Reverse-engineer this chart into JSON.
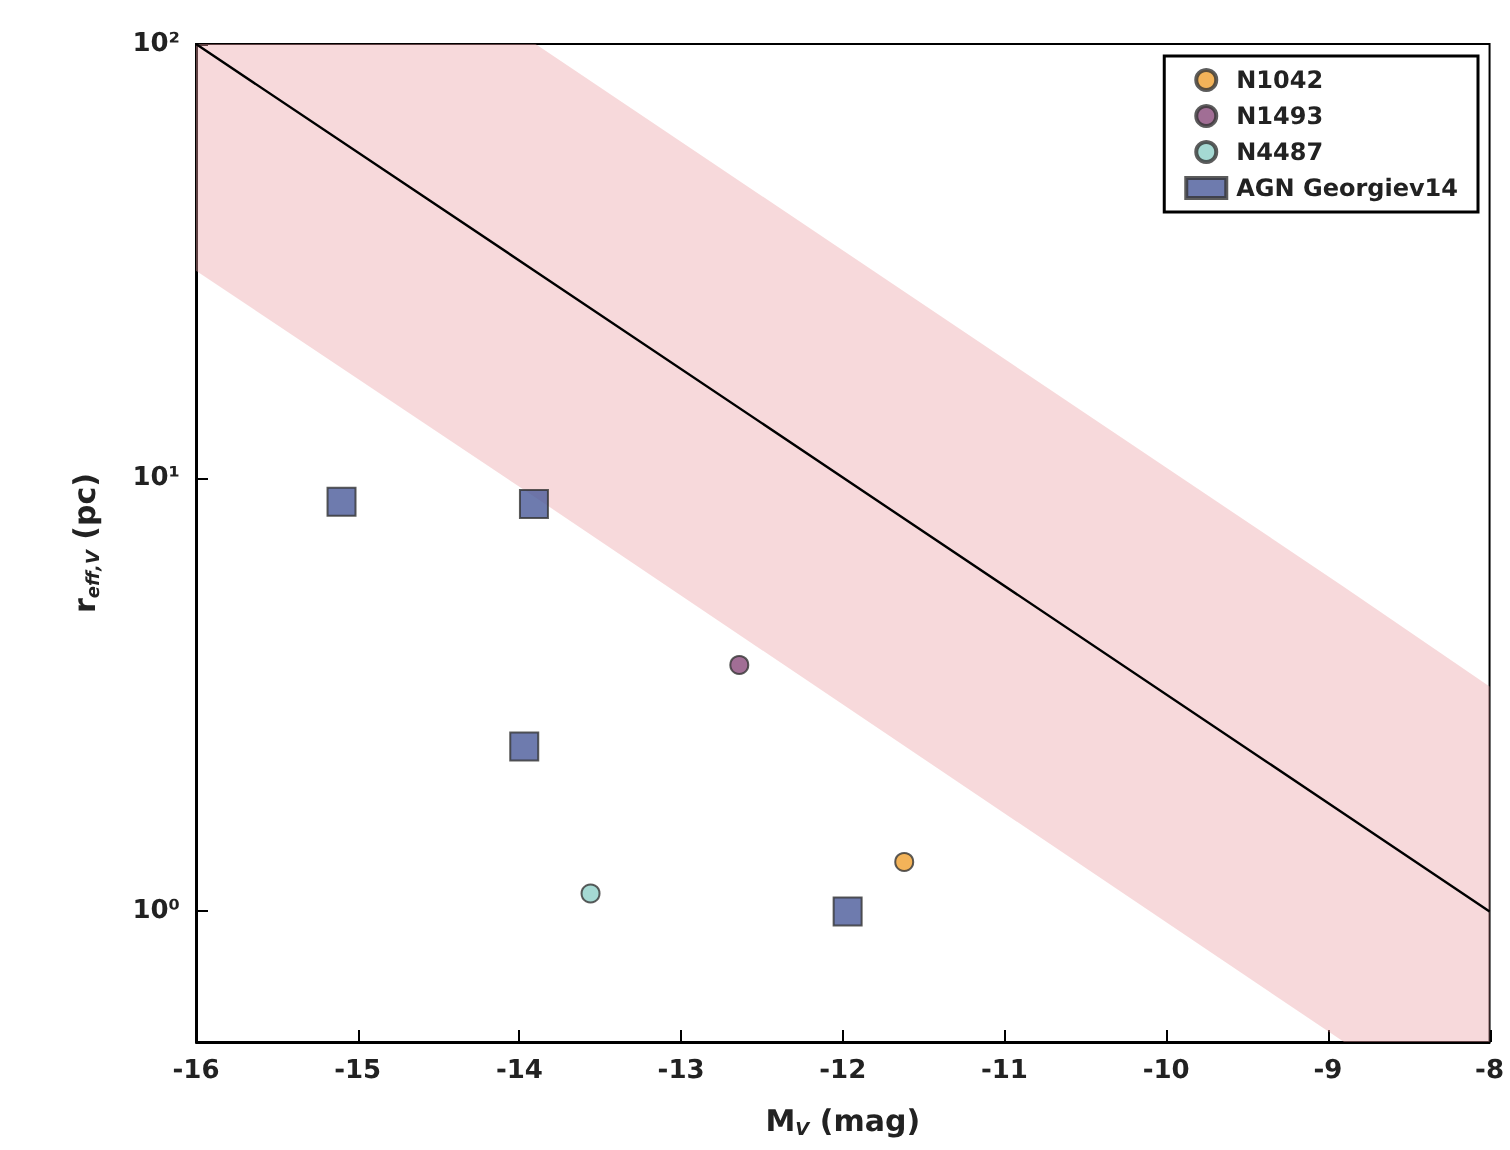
{
  "chart_data": {
    "type": "scatter",
    "xlabel": "M$_{V}$ (mag)",
    "ylabel": "r$_{eff,V}$ (pc)",
    "xlim": [
      -16,
      -8
    ],
    "xticks": [
      -16,
      -15,
      -14,
      -13,
      -12,
      -11,
      -10,
      -9,
      -8
    ],
    "ylim": [
      0.5,
      100
    ],
    "yticks": [
      {
        "value": 1,
        "label": "10⁰"
      },
      {
        "value": 10,
        "label": "10¹"
      },
      {
        "value": 100,
        "label": "10²"
      }
    ],
    "log": "y",
    "grid": false,
    "legend": "top right",
    "series": [
      {
        "type": "line",
        "color": "#000000",
        "x": [
          -16,
          -13.9,
          -8.9,
          -8
        ],
        "values": [
          100,
          29.9,
          1.68,
          1
        ],
        "upper": [
          100,
          100,
          5.6,
          3.3
        ],
        "lower": [
          30,
          9,
          0.5,
          0.5
        ],
        "marker": "none"
      },
      {
        "name": "N1042",
        "color": "#f0a030",
        "marker": "circle",
        "x": [
          -11.62
        ],
        "values": [
          1.3
        ]
      },
      {
        "name": "N1493",
        "color": "#8a4a7a",
        "marker": "circle",
        "x": [
          -12.64
        ],
        "values": [
          3.7
        ]
      },
      {
        "name": "N4487",
        "color": "#8fd0c8",
        "marker": "circle",
        "x": [
          -13.56
        ],
        "values": [
          1.1
        ]
      },
      {
        "name": "AGN Georgiev14",
        "color": "#4a5a9a",
        "marker": "square",
        "x": [
          -15.1,
          -13.91,
          -13.97,
          -11.97
        ],
        "values": [
          8.8,
          8.7,
          2.4,
          1.0
        ]
      }
    ]
  }
}
